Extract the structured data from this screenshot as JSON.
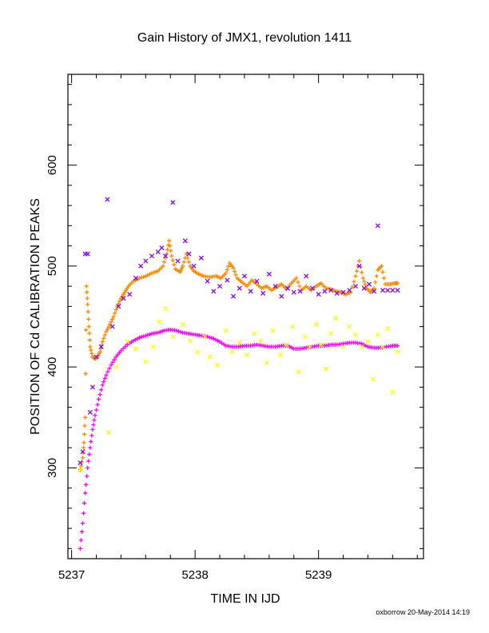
{
  "chart_data": {
    "type": "scatter",
    "title": "Gain History of JMX1, revolution 1411",
    "xlabel": "TIME IN IJD",
    "ylabel": "POSITION OF Cd CALIBRATION PEAKS",
    "xlim": [
      5236.97,
      5239.85
    ],
    "ylim": [
      210,
      690
    ],
    "x_ticks": [
      5237,
      5238,
      5239
    ],
    "y_ticks": [
      300,
      400,
      500,
      600
    ],
    "grid": false,
    "series": [
      {
        "color": "#ff00ff",
        "marker": "plus",
        "points": [
          [
            5237.07,
            220
          ],
          [
            5237.09,
            245
          ],
          [
            5237.11,
            275
          ],
          [
            5237.13,
            300
          ],
          [
            5237.15,
            320
          ],
          [
            5237.17,
            338
          ],
          [
            5237.19,
            352
          ],
          [
            5237.22,
            368
          ],
          [
            5237.25,
            382
          ],
          [
            5237.28,
            392
          ],
          [
            5237.32,
            402
          ],
          [
            5237.36,
            410
          ],
          [
            5237.4,
            416
          ],
          [
            5237.45,
            422
          ],
          [
            5237.5,
            426
          ],
          [
            5237.55,
            429
          ],
          [
            5237.6,
            431
          ],
          [
            5237.65,
            433
          ],
          [
            5237.7,
            434
          ],
          [
            5237.75,
            436
          ],
          [
            5237.8,
            437
          ],
          [
            5237.85,
            436
          ],
          [
            5237.9,
            434
          ],
          [
            5237.95,
            433
          ],
          [
            5238.0,
            432
          ],
          [
            5238.05,
            431
          ],
          [
            5238.1,
            430
          ],
          [
            5238.15,
            428
          ],
          [
            5238.2,
            425
          ],
          [
            5238.25,
            421
          ],
          [
            5238.3,
            420
          ],
          [
            5238.35,
            420
          ],
          [
            5238.4,
            421
          ],
          [
            5238.45,
            421
          ],
          [
            5238.5,
            422
          ],
          [
            5238.55,
            421
          ],
          [
            5238.6,
            420
          ],
          [
            5238.65,
            420
          ],
          [
            5238.7,
            421
          ],
          [
            5238.75,
            421
          ],
          [
            5238.8,
            418
          ],
          [
            5238.85,
            418
          ],
          [
            5238.9,
            419
          ],
          [
            5238.95,
            420
          ],
          [
            5239.0,
            421
          ],
          [
            5239.05,
            421
          ],
          [
            5239.1,
            422
          ],
          [
            5239.15,
            422
          ],
          [
            5239.2,
            423
          ],
          [
            5239.25,
            424
          ],
          [
            5239.3,
            424
          ],
          [
            5239.35,
            423
          ],
          [
            5239.4,
            420
          ],
          [
            5239.45,
            419
          ],
          [
            5239.5,
            419
          ],
          [
            5239.55,
            420
          ],
          [
            5239.6,
            421
          ],
          [
            5239.64,
            421
          ]
        ]
      },
      {
        "color": "#ff8800",
        "marker": "plus",
        "points": [
          [
            5237.07,
            298
          ],
          [
            5237.09,
            310
          ],
          [
            5237.1,
            325
          ],
          [
            5237.11,
            350
          ],
          [
            5237.12,
            480
          ],
          [
            5237.13,
            462
          ],
          [
            5237.14,
            440
          ],
          [
            5237.15,
            420
          ],
          [
            5237.17,
            410
          ],
          [
            5237.19,
            408
          ],
          [
            5237.21,
            410
          ],
          [
            5237.23,
            415
          ],
          [
            5237.25,
            425
          ],
          [
            5237.28,
            435
          ],
          [
            5237.31,
            442
          ],
          [
            5237.34,
            450
          ],
          [
            5237.37,
            460
          ],
          [
            5237.4,
            468
          ],
          [
            5237.43,
            474
          ],
          [
            5237.46,
            480
          ],
          [
            5237.5,
            485
          ],
          [
            5237.55,
            488
          ],
          [
            5237.6,
            490
          ],
          [
            5237.65,
            493
          ],
          [
            5237.7,
            495
          ],
          [
            5237.74,
            500
          ],
          [
            5237.77,
            512
          ],
          [
            5237.79,
            525
          ],
          [
            5237.81,
            510
          ],
          [
            5237.84,
            497
          ],
          [
            5237.88,
            494
          ],
          [
            5237.9,
            500
          ],
          [
            5237.93,
            512
          ],
          [
            5237.96,
            500
          ],
          [
            5237.99,
            495
          ],
          [
            5238.03,
            492
          ],
          [
            5238.07,
            490
          ],
          [
            5238.12,
            489
          ],
          [
            5238.17,
            490
          ],
          [
            5238.21,
            488
          ],
          [
            5238.25,
            493
          ],
          [
            5238.28,
            503
          ],
          [
            5238.31,
            498
          ],
          [
            5238.34,
            488
          ],
          [
            5238.38,
            484
          ],
          [
            5238.42,
            480
          ],
          [
            5238.46,
            486
          ],
          [
            5238.5,
            482
          ],
          [
            5238.54,
            478
          ],
          [
            5238.58,
            480
          ],
          [
            5238.62,
            476
          ],
          [
            5238.66,
            479
          ],
          [
            5238.7,
            482
          ],
          [
            5238.74,
            477
          ],
          [
            5238.78,
            483
          ],
          [
            5238.82,
            488
          ],
          [
            5238.86,
            476
          ],
          [
            5238.9,
            480
          ],
          [
            5238.94,
            476
          ],
          [
            5238.98,
            480
          ],
          [
            5239.02,
            483
          ],
          [
            5239.06,
            478
          ],
          [
            5239.1,
            477
          ],
          [
            5239.14,
            475
          ],
          [
            5239.18,
            474
          ],
          [
            5239.22,
            472
          ],
          [
            5239.26,
            474
          ],
          [
            5239.3,
            490
          ],
          [
            5239.33,
            505
          ],
          [
            5239.36,
            488
          ],
          [
            5239.39,
            478
          ],
          [
            5239.42,
            474
          ],
          [
            5239.45,
            478
          ],
          [
            5239.48,
            496
          ],
          [
            5239.51,
            500
          ],
          [
            5239.54,
            482
          ],
          [
            5239.58,
            482
          ],
          [
            5239.62,
            483
          ],
          [
            5239.64,
            483
          ]
        ]
      },
      {
        "color": "#8800ff",
        "marker": "x",
        "points": [
          [
            5237.07,
            305
          ],
          [
            5237.09,
            316
          ],
          [
            5237.11,
            512
          ],
          [
            5237.13,
            512
          ],
          [
            5237.15,
            355
          ],
          [
            5237.17,
            380
          ],
          [
            5237.2,
            410
          ],
          [
            5237.24,
            420
          ],
          [
            5237.29,
            566
          ],
          [
            5237.33,
            440
          ],
          [
            5237.38,
            460
          ],
          [
            5237.42,
            468
          ],
          [
            5237.47,
            472
          ],
          [
            5237.52,
            488
          ],
          [
            5237.56,
            500
          ],
          [
            5237.6,
            505
          ],
          [
            5237.65,
            510
          ],
          [
            5237.7,
            514
          ],
          [
            5237.73,
            518
          ],
          [
            5237.76,
            510
          ],
          [
            5237.82,
            563
          ],
          [
            5237.86,
            505
          ],
          [
            5237.92,
            525
          ],
          [
            5237.95,
            512
          ],
          [
            5237.99,
            500
          ],
          [
            5238.05,
            508
          ],
          [
            5238.1,
            485
          ],
          [
            5238.15,
            475
          ],
          [
            5238.2,
            480
          ],
          [
            5238.26,
            486
          ],
          [
            5238.31,
            470
          ],
          [
            5238.36,
            478
          ],
          [
            5238.4,
            490
          ],
          [
            5238.45,
            475
          ],
          [
            5238.5,
            485
          ],
          [
            5238.55,
            473
          ],
          [
            5238.6,
            492
          ],
          [
            5238.65,
            480
          ],
          [
            5238.7,
            470
          ],
          [
            5238.75,
            478
          ],
          [
            5238.8,
            474
          ],
          [
            5238.85,
            475
          ],
          [
            5238.9,
            490
          ],
          [
            5238.95,
            478
          ],
          [
            5239.0,
            472
          ],
          [
            5239.05,
            475
          ],
          [
            5239.1,
            476
          ],
          [
            5239.15,
            473
          ],
          [
            5239.2,
            474
          ],
          [
            5239.25,
            476
          ],
          [
            5239.3,
            480
          ],
          [
            5239.33,
            500
          ],
          [
            5239.37,
            478
          ],
          [
            5239.41,
            482
          ],
          [
            5239.45,
            475
          ],
          [
            5239.48,
            540
          ],
          [
            5239.52,
            476
          ],
          [
            5239.56,
            476
          ],
          [
            5239.6,
            476
          ],
          [
            5239.64,
            476
          ]
        ]
      },
      {
        "color": "#ffff00",
        "marker": "x",
        "points": [
          [
            5237.07,
            298
          ],
          [
            5237.3,
            335
          ],
          [
            5237.36,
            400
          ],
          [
            5237.45,
            425
          ],
          [
            5237.52,
            418
          ],
          [
            5237.6,
            405
          ],
          [
            5237.66,
            420
          ],
          [
            5237.71,
            445
          ],
          [
            5237.76,
            458
          ],
          [
            5237.82,
            430
          ],
          [
            5237.9,
            442
          ],
          [
            5237.96,
            426
          ],
          [
            5238.02,
            415
          ],
          [
            5238.08,
            430
          ],
          [
            5238.12,
            410
          ],
          [
            5238.18,
            402
          ],
          [
            5238.25,
            436
          ],
          [
            5238.3,
            415
          ],
          [
            5238.36,
            424
          ],
          [
            5238.42,
            412
          ],
          [
            5238.48,
            433
          ],
          [
            5238.53,
            426
          ],
          [
            5238.58,
            404
          ],
          [
            5238.63,
            436
          ],
          [
            5238.69,
            412
          ],
          [
            5238.74,
            422
          ],
          [
            5238.79,
            440
          ],
          [
            5238.84,
            395
          ],
          [
            5238.89,
            430
          ],
          [
            5238.93,
            420
          ],
          [
            5238.98,
            442
          ],
          [
            5239.02,
            422
          ],
          [
            5239.06,
            398
          ],
          [
            5239.1,
            433
          ],
          [
            5239.14,
            448
          ],
          [
            5239.2,
            420
          ],
          [
            5239.25,
            440
          ],
          [
            5239.3,
            432
          ],
          [
            5239.35,
            420
          ],
          [
            5239.4,
            425
          ],
          [
            5239.44,
            388
          ],
          [
            5239.48,
            432
          ],
          [
            5239.52,
            420
          ],
          [
            5239.56,
            438
          ],
          [
            5239.6,
            375
          ],
          [
            5239.64,
            415
          ]
        ]
      }
    ]
  },
  "footer": "oxborrow 20-May-2014 14:19"
}
